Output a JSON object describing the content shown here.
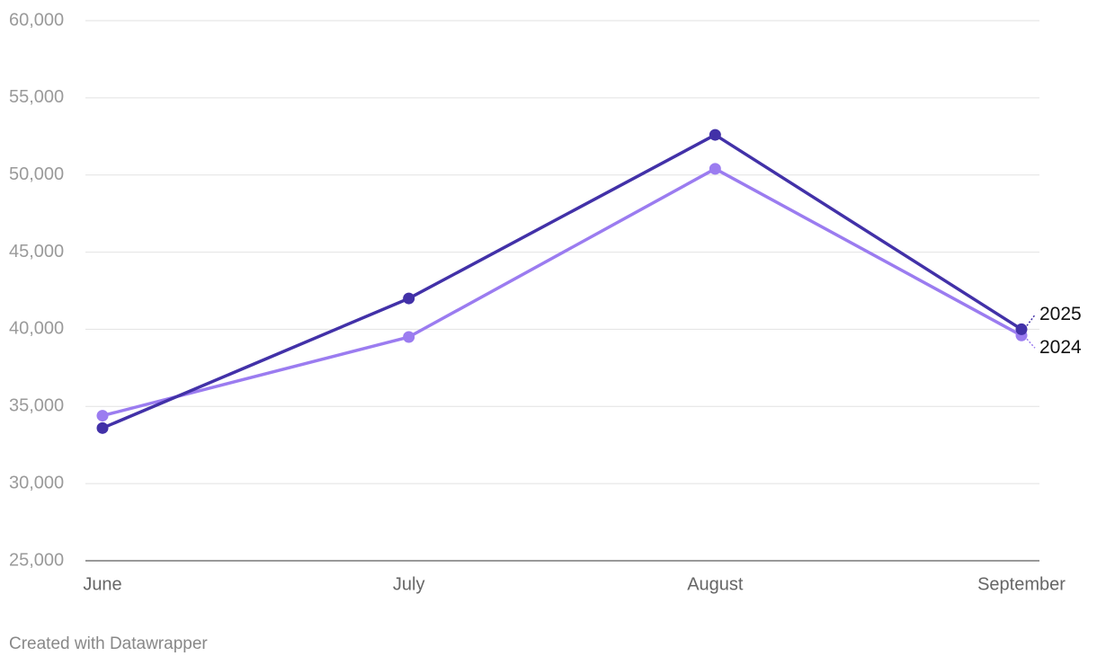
{
  "chart_data": {
    "type": "line",
    "categories": [
      "June",
      "July",
      "August",
      "September"
    ],
    "series": [
      {
        "name": "2024",
        "color": "#9b7cf0",
        "values": [
          34400,
          39500,
          50400,
          39600
        ]
      },
      {
        "name": "2025",
        "color": "#4231a8",
        "values": [
          33600,
          42000,
          52600,
          40000
        ]
      }
    ],
    "ylim": [
      25000,
      60000
    ],
    "yticks": [
      {
        "value": 25000,
        "label": "25,000"
      },
      {
        "value": 30000,
        "label": "30,000"
      },
      {
        "value": 35000,
        "label": "35,000"
      },
      {
        "value": 40000,
        "label": "40,000"
      },
      {
        "value": 45000,
        "label": "45,000"
      },
      {
        "value": 50000,
        "label": "50,000"
      },
      {
        "value": 55000,
        "label": "55,000"
      },
      {
        "value": 60000,
        "label": "60,000"
      }
    ],
    "grid": true,
    "credit": "Created with Datawrapper"
  }
}
